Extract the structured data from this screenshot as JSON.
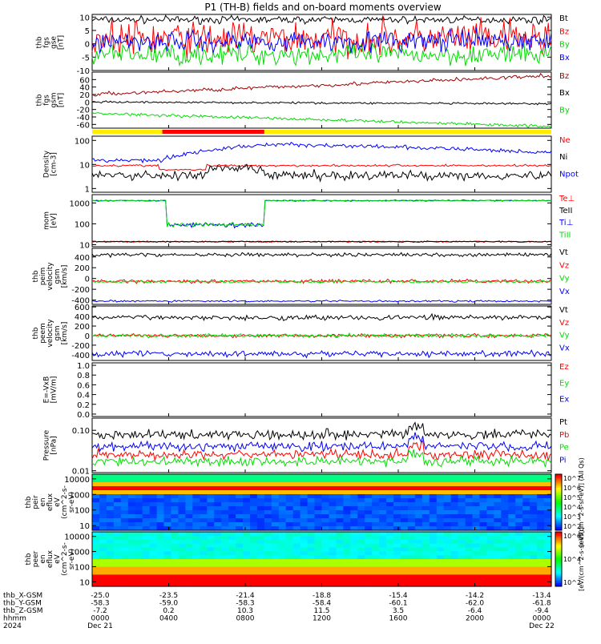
{
  "title": "P1 (TH-B) fields and on-board moments overview",
  "colors": {
    "black": "#000000",
    "red": "#ff0000",
    "darkred": "#a00000",
    "green": "#00dd00",
    "blue": "#0000ff",
    "yellow": "#ffee00"
  },
  "chart_data": [
    {
      "id": "fgs",
      "type": "line",
      "ylabel": [
        "thb",
        "fgs",
        "gse",
        "[nT]"
      ],
      "ylim": [
        -10,
        11
      ],
      "ticks": [
        "10",
        "5",
        "0",
        "-5",
        "-10"
      ],
      "tick_values": [
        10,
        5,
        0,
        -5,
        -10
      ],
      "series": [
        {
          "name": "Bt",
          "color": "black",
          "base": 9,
          "noise": 1
        },
        {
          "name": "Bz",
          "color": "red",
          "base": 2,
          "noise": 5
        },
        {
          "name": "By",
          "color": "green",
          "base": -4,
          "noise": 3
        },
        {
          "name": "Bx",
          "color": "blue",
          "base": 1,
          "noise": 3
        }
      ]
    },
    {
      "id": "fgs_gsm",
      "type": "line",
      "ylabel": [
        "thb",
        "fgs",
        "gsm",
        "[nT]"
      ],
      "ylim": [
        -70,
        80
      ],
      "ticks": [
        "60",
        "40",
        "20",
        "0",
        "-20",
        "-40",
        "-60"
      ],
      "tick_values": [
        60,
        40,
        20,
        0,
        -20,
        -40,
        -60
      ],
      "series": [
        {
          "name": "Bz",
          "color": "darkred",
          "start": 20,
          "end": 70,
          "noise": 4
        },
        {
          "name": "Bx",
          "color": "black",
          "start": 0,
          "end": -5,
          "noise": 2
        },
        {
          "name": "By",
          "color": "green",
          "start": -30,
          "end": -65,
          "noise": 3
        }
      ]
    },
    {
      "id": "density",
      "type": "line",
      "log": true,
      "ylabel": [
        "Density",
        "[cm-3]"
      ],
      "ylim": [
        0.7,
        150
      ],
      "ticks": [
        "100",
        "10",
        "1"
      ],
      "tick_values": [
        100,
        10,
        1
      ],
      "series": [
        {
          "name": "Ne",
          "color": "red"
        },
        {
          "name": "Ni",
          "color": "black"
        },
        {
          "name": "Npot",
          "color": "blue"
        }
      ]
    },
    {
      "id": "temp",
      "type": "line",
      "log": true,
      "ylabel": [
        "mom",
        "[eV]"
      ],
      "ylim": [
        8,
        2500
      ],
      "ticks": [
        "1000",
        "100",
        "10"
      ],
      "tick_values": [
        1000,
        100,
        10
      ],
      "series": [
        {
          "name": "Te⊥",
          "color": "red"
        },
        {
          "name": "TeII",
          "color": "black"
        },
        {
          "name": "Ti⊥",
          "color": "blue"
        },
        {
          "name": "TiII",
          "color": "green"
        }
      ]
    },
    {
      "id": "vi",
      "type": "line",
      "ylabel": [
        "thb",
        "peim",
        "velocity",
        "gsm",
        "[km/s]"
      ],
      "ylim": [
        -480,
        560
      ],
      "ticks": [
        "400",
        "200",
        "0",
        "-200",
        "-400"
      ],
      "tick_values": [
        400,
        200,
        0,
        -200,
        -400
      ],
      "series": [
        {
          "name": "Vt",
          "color": "black",
          "base": 440,
          "noise": 25
        },
        {
          "name": "Vz",
          "color": "red",
          "base": -50,
          "noise": 25
        },
        {
          "name": "Vy",
          "color": "green",
          "base": -60,
          "noise": 15
        },
        {
          "name": "Vx",
          "color": "blue",
          "base": -420,
          "noise": 12
        }
      ]
    },
    {
      "id": "ve",
      "type": "line",
      "ylabel": [
        "thb",
        "peem",
        "velocity",
        "gsm",
        "[km/s]"
      ],
      "ylim": [
        -520,
        620
      ],
      "ticks": [
        "600",
        "400",
        "200",
        "0",
        "-200",
        "-400"
      ],
      "tick_values": [
        600,
        400,
        200,
        0,
        -200,
        -400
      ],
      "series": [
        {
          "name": "Vt",
          "color": "black",
          "base": 380,
          "noise": 40
        },
        {
          "name": "Vz",
          "color": "red",
          "base": 0,
          "noise": 30
        },
        {
          "name": "Vy",
          "color": "green",
          "base": 0,
          "noise": 30
        },
        {
          "name": "Vx",
          "color": "blue",
          "base": -380,
          "noise": 45
        }
      ]
    },
    {
      "id": "efield",
      "type": "line",
      "ylabel": [
        "E=-VxB",
        "[mV/m]"
      ],
      "ylim": [
        -0.05,
        1.05
      ],
      "ticks": [
        "1.0",
        "0.8",
        "0.6",
        "0.4",
        "0.2",
        "0.0"
      ],
      "tick_values": [
        1,
        0.8,
        0.6,
        0.4,
        0.2,
        0
      ],
      "series": [
        {
          "name": "Ez",
          "color": "red"
        },
        {
          "name": "Ey",
          "color": "green"
        },
        {
          "name": "Ex",
          "color": "blue"
        }
      ]
    },
    {
      "id": "pressure",
      "type": "line",
      "log": true,
      "ylabel": [
        "Pressure",
        "[nPa]"
      ],
      "ylim": [
        0.009,
        0.2
      ],
      "ticks": [
        "0.10",
        "0.01"
      ],
      "tick_values": [
        0.1,
        0.01
      ],
      "series": [
        {
          "name": "Pt",
          "color": "black"
        },
        {
          "name": "Pb",
          "color": "red"
        },
        {
          "name": "Pe",
          "color": "green"
        },
        {
          "name": "Pi",
          "color": "blue"
        }
      ]
    },
    {
      "id": "peir",
      "type": "heatmap",
      "log": true,
      "ylabel": [
        "thb",
        "peir",
        "en",
        "eflux",
        "eV",
        "(cm^2-s-",
        "sr-eV)"
      ],
      "ylim": [
        5,
        20000
      ],
      "ticks": [
        "10000",
        "1000",
        "100",
        "10"
      ],
      "tick_values": [
        10000,
        1000,
        100,
        10
      ]
    },
    {
      "id": "peer",
      "type": "heatmap",
      "log": true,
      "ylabel": [
        "thb",
        "peer",
        "en",
        "eflux",
        "eV",
        "(cm^2-s-",
        "sr-eV)"
      ],
      "ylim": [
        5,
        20000
      ],
      "ticks": [
        "10000",
        "1000",
        "100",
        "10"
      ],
      "tick_values": [
        10000,
        1000,
        100,
        10
      ]
    }
  ],
  "bar_strip": {
    "ranges": [
      {
        "start": "0000",
        "end": "0340",
        "color": "yellow"
      },
      {
        "start": "0340",
        "end": "0900",
        "color": "red"
      },
      {
        "start": "0900",
        "end": "2400",
        "color": "yellow"
      }
    ]
  },
  "colorbars": [
    {
      "ticks": [
        "10^7",
        "10^6",
        "10^5",
        "10^4",
        "10^3",
        "10^2"
      ],
      "label": "[eV/(cm^2-s-sr-eV)] (All Qs)"
    },
    {
      "ticks": [
        "10^6",
        "10^4",
        "10^2"
      ],
      "label": "[eV/(cm^2-s-sr-eV)]"
    }
  ],
  "time_axis": {
    "x_ticks_hours": [
      0,
      4,
      8,
      12,
      16,
      20,
      24
    ],
    "rows": [
      {
        "label": "thb_X-GSM",
        "values": [
          "-25.0",
          "-23.5",
          "-21.4",
          "-18.8",
          "-15.4",
          "-14.2",
          "-13.4"
        ]
      },
      {
        "label": "thb_Y-GSM",
        "values": [
          "-58.3",
          "-59.0",
          "-58.3",
          "-58.4",
          "-60.1",
          "-62.0",
          "-61.8"
        ]
      },
      {
        "label": "thb_Z-GSM",
        "values": [
          "-7.2",
          "0.2",
          "10.3",
          "11.5",
          "3.5",
          "-6.4",
          "-9.4"
        ]
      },
      {
        "label": "hhmm",
        "values": [
          "0000",
          "0400",
          "0800",
          "1200",
          "1600",
          "2000",
          "0000"
        ]
      },
      {
        "label": "2024",
        "values": [
          "Dec 21",
          "",
          "",
          "",
          "",
          "",
          "Dec 22"
        ]
      }
    ]
  }
}
